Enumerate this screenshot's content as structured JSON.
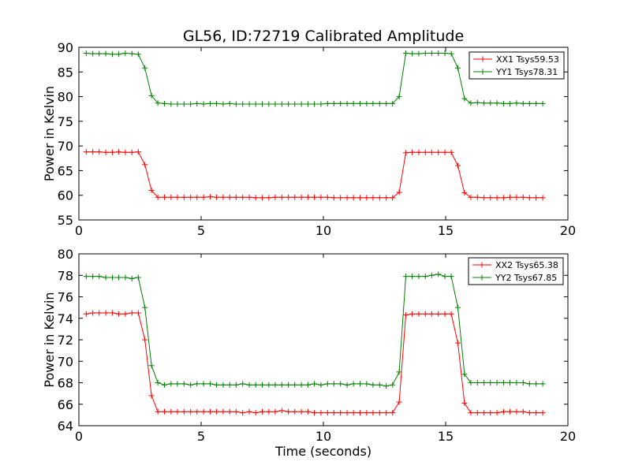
{
  "chart_data": {
    "type": "line",
    "title": "GL56, ID:72719 Calibrated Amplitude",
    "xlabel": "Time (seconds)",
    "subplots": [
      {
        "ylabel": "Power in Kelvin",
        "xlim": [
          0,
          20
        ],
        "ylim": [
          55,
          90
        ],
        "xticks": [
          "0",
          "5",
          "10",
          "15",
          "20"
        ],
        "yticks": [
          "55",
          "60",
          "65",
          "70",
          "75",
          "80",
          "85",
          "90"
        ],
        "legend_position": "top-right",
        "x": [
          0.3,
          0.57,
          0.83,
          1.1,
          1.37,
          1.63,
          1.9,
          2.17,
          2.43,
          2.7,
          2.97,
          3.23,
          3.5,
          3.77,
          4.03,
          4.3,
          4.57,
          4.83,
          5.1,
          5.37,
          5.63,
          5.9,
          6.17,
          6.43,
          6.7,
          6.97,
          7.23,
          7.5,
          7.77,
          8.03,
          8.3,
          8.57,
          8.83,
          9.1,
          9.37,
          9.63,
          9.9,
          10.17,
          10.43,
          10.7,
          10.97,
          11.23,
          11.5,
          11.77,
          12.03,
          12.3,
          12.57,
          12.83,
          13.1,
          13.37,
          13.63,
          13.9,
          14.17,
          14.43,
          14.7,
          14.97,
          15.23,
          15.5,
          15.77,
          16.03,
          16.3,
          16.57,
          16.83,
          17.1,
          17.37,
          17.63,
          17.9,
          18.17,
          18.43,
          18.7,
          18.97
        ],
        "series": [
          {
            "name": "XX1 Tsys59.53",
            "color": "#ff0000",
            "values": [
              68.8,
              68.8,
              68.8,
              68.7,
              68.7,
              68.8,
              68.7,
              68.7,
              68.8,
              66.2,
              61.0,
              59.6,
              59.6,
              59.6,
              59.6,
              59.6,
              59.6,
              59.6,
              59.6,
              59.7,
              59.6,
              59.6,
              59.6,
              59.6,
              59.6,
              59.6,
              59.5,
              59.5,
              59.5,
              59.6,
              59.6,
              59.6,
              59.6,
              59.6,
              59.6,
              59.6,
              59.6,
              59.6,
              59.5,
              59.5,
              59.5,
              59.5,
              59.5,
              59.5,
              59.5,
              59.5,
              59.5,
              59.5,
              60.6,
              68.6,
              68.7,
              68.7,
              68.7,
              68.7,
              68.7,
              68.7,
              68.7,
              66.0,
              60.5,
              59.6,
              59.6,
              59.5,
              59.5,
              59.5,
              59.5,
              59.6,
              59.6,
              59.6,
              59.5,
              59.5,
              59.5
            ]
          },
          {
            "name": "YY1 Tsys78.31",
            "color": "#008000",
            "values": [
              88.8,
              88.7,
              88.7,
              88.7,
              88.6,
              88.6,
              88.8,
              88.7,
              88.6,
              85.8,
              80.2,
              78.7,
              78.6,
              78.5,
              78.5,
              78.5,
              78.5,
              78.6,
              78.5,
              78.6,
              78.6,
              78.5,
              78.6,
              78.5,
              78.5,
              78.5,
              78.5,
              78.5,
              78.5,
              78.5,
              78.5,
              78.5,
              78.5,
              78.5,
              78.5,
              78.5,
              78.5,
              78.6,
              78.6,
              78.6,
              78.6,
              78.6,
              78.6,
              78.6,
              78.6,
              78.6,
              78.6,
              78.6,
              80.0,
              88.8,
              88.7,
              88.7,
              88.8,
              88.8,
              88.8,
              88.8,
              88.7,
              85.8,
              79.6,
              78.7,
              78.8,
              78.7,
              78.7,
              78.7,
              78.6,
              78.6,
              78.7,
              78.6,
              78.6,
              78.6,
              78.6
            ]
          }
        ]
      },
      {
        "ylabel": "Power in Kelvin",
        "xlim": [
          0,
          20
        ],
        "ylim": [
          64,
          80
        ],
        "xticks": [
          "0",
          "5",
          "10",
          "15",
          "20"
        ],
        "yticks": [
          "64",
          "66",
          "68",
          "70",
          "72",
          "74",
          "76",
          "78",
          "80"
        ],
        "legend_position": "top-right",
        "x": [
          0.3,
          0.57,
          0.83,
          1.1,
          1.37,
          1.63,
          1.9,
          2.17,
          2.43,
          2.7,
          2.97,
          3.23,
          3.5,
          3.77,
          4.03,
          4.3,
          4.57,
          4.83,
          5.1,
          5.37,
          5.63,
          5.9,
          6.17,
          6.43,
          6.7,
          6.97,
          7.23,
          7.5,
          7.77,
          8.03,
          8.3,
          8.57,
          8.83,
          9.1,
          9.37,
          9.63,
          9.9,
          10.17,
          10.43,
          10.7,
          10.97,
          11.23,
          11.5,
          11.77,
          12.03,
          12.3,
          12.57,
          12.83,
          13.1,
          13.37,
          13.63,
          13.9,
          14.17,
          14.43,
          14.7,
          14.97,
          15.23,
          15.5,
          15.77,
          16.03,
          16.3,
          16.57,
          16.83,
          17.1,
          17.37,
          17.63,
          17.9,
          18.17,
          18.43,
          18.7,
          18.97
        ],
        "series": [
          {
            "name": "XX2 Tsys65.38",
            "color": "#ff0000",
            "values": [
              74.4,
              74.5,
              74.5,
              74.5,
              74.5,
              74.4,
              74.4,
              74.5,
              74.5,
              72.0,
              66.8,
              65.3,
              65.3,
              65.3,
              65.3,
              65.3,
              65.3,
              65.3,
              65.3,
              65.3,
              65.3,
              65.3,
              65.3,
              65.3,
              65.2,
              65.3,
              65.2,
              65.3,
              65.3,
              65.3,
              65.4,
              65.3,
              65.3,
              65.3,
              65.3,
              65.2,
              65.2,
              65.2,
              65.2,
              65.2,
              65.2,
              65.2,
              65.2,
              65.2,
              65.2,
              65.2,
              65.2,
              65.2,
              66.2,
              74.3,
              74.4,
              74.4,
              74.4,
              74.4,
              74.4,
              74.4,
              74.4,
              71.7,
              66.1,
              65.2,
              65.2,
              65.2,
              65.2,
              65.2,
              65.3,
              65.3,
              65.3,
              65.3,
              65.2,
              65.2,
              65.2
            ]
          },
          {
            "name": "YY2 Tsys67.85",
            "color": "#008000",
            "values": [
              77.9,
              77.9,
              77.9,
              77.8,
              77.8,
              77.8,
              77.8,
              77.7,
              77.8,
              75.0,
              69.6,
              68.0,
              67.8,
              67.9,
              67.9,
              67.9,
              67.8,
              67.9,
              67.9,
              67.9,
              67.8,
              67.8,
              67.8,
              67.8,
              67.9,
              67.8,
              67.8,
              67.8,
              67.8,
              67.8,
              67.8,
              67.8,
              67.8,
              67.8,
              67.8,
              67.9,
              67.8,
              67.9,
              67.9,
              67.9,
              67.8,
              67.9,
              67.9,
              67.9,
              67.8,
              67.8,
              67.7,
              67.8,
              69.0,
              77.9,
              77.9,
              77.9,
              77.9,
              78.0,
              78.1,
              77.9,
              77.9,
              75.0,
              68.8,
              68.0,
              68.0,
              68.0,
              68.0,
              68.0,
              68.0,
              68.0,
              68.0,
              68.0,
              67.9,
              67.9,
              67.9
            ]
          }
        ]
      }
    ]
  }
}
